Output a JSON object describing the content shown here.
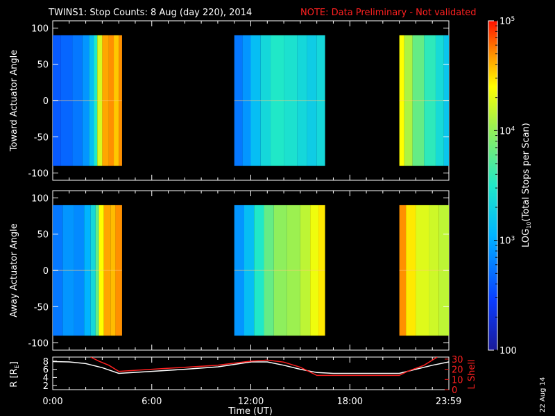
{
  "chart_data": [
    {
      "type": "heatmap",
      "title_main": "TWINS1: Stop Counts:  8 Aug (day 220), 2014",
      "title_note": "NOTE: Data Preliminary - Not validated",
      "ylabel": "Toward Actuator Angle",
      "ylim": [
        -110,
        110
      ],
      "yticks": [
        "100",
        "50",
        "0",
        "-50",
        "-100"
      ],
      "ytick_values": [
        100,
        50,
        0,
        -50,
        -100
      ],
      "data_range": [
        -90,
        90
      ],
      "time_range_hours": [
        0,
        24
      ],
      "segments": [
        {
          "start": 0.0,
          "end": 4.2,
          "blocks": [
            [
              0.0,
              0.2
            ],
            [
              0.5,
              0.22
            ],
            [
              1.2,
              0.25
            ],
            [
              1.8,
              0.3
            ],
            [
              2.2,
              0.38
            ],
            [
              2.5,
              0.5
            ],
            [
              2.7,
              0.75
            ],
            [
              3.0,
              0.88
            ],
            [
              3.4,
              0.9
            ],
            [
              3.7,
              0.85
            ],
            [
              4.0,
              0.9
            ]
          ]
        },
        {
          "start": 11.0,
          "end": 16.5,
          "blocks": [
            [
              11.0,
              0.25
            ],
            [
              11.5,
              0.3
            ],
            [
              12.0,
              0.38
            ],
            [
              12.6,
              0.45
            ],
            [
              13.2,
              0.5
            ],
            [
              14.0,
              0.48
            ],
            [
              14.8,
              0.45
            ],
            [
              15.4,
              0.42
            ],
            [
              16.0,
              0.45
            ]
          ]
        },
        {
          "start": 21.0,
          "end": 24.0,
          "blocks": [
            [
              21.0,
              0.8
            ],
            [
              21.3,
              0.7
            ],
            [
              21.8,
              0.6
            ],
            [
              22.5,
              0.52
            ],
            [
              23.2,
              0.46
            ],
            [
              23.7,
              0.4
            ]
          ]
        }
      ]
    },
    {
      "type": "heatmap",
      "ylabel": "Away Actuator Angle",
      "ylim": [
        -110,
        110
      ],
      "yticks": [
        "100",
        "50",
        "0",
        "-50",
        "-100"
      ],
      "ytick_values": [
        100,
        50,
        0,
        -50,
        -100
      ],
      "data_range": [
        -90,
        90
      ],
      "time_range_hours": [
        0,
        24
      ],
      "segments": [
        {
          "start": 0.0,
          "end": 4.2,
          "blocks": [
            [
              0.0,
              0.25
            ],
            [
              0.6,
              0.3
            ],
            [
              1.3,
              0.28
            ],
            [
              1.9,
              0.35
            ],
            [
              2.3,
              0.45
            ],
            [
              2.6,
              0.6
            ],
            [
              2.8,
              0.8
            ],
            [
              3.1,
              0.88
            ],
            [
              3.5,
              0.86
            ],
            [
              3.8,
              0.9
            ]
          ]
        },
        {
          "start": 11.0,
          "end": 16.5,
          "blocks": [
            [
              11.0,
              0.3
            ],
            [
              11.6,
              0.38
            ],
            [
              12.2,
              0.5
            ],
            [
              12.8,
              0.6
            ],
            [
              13.4,
              0.66
            ],
            [
              14.2,
              0.68
            ],
            [
              15.0,
              0.72
            ],
            [
              15.6,
              0.78
            ],
            [
              16.1,
              0.82
            ]
          ]
        },
        {
          "start": 21.0,
          "end": 24.0,
          "blocks": [
            [
              21.0,
              0.9
            ],
            [
              21.4,
              0.82
            ],
            [
              22.0,
              0.76
            ],
            [
              22.8,
              0.74
            ],
            [
              23.4,
              0.72
            ]
          ]
        }
      ]
    },
    {
      "type": "line",
      "xlabel": "Time (UT)",
      "xticks": [
        "0:00",
        "6:00",
        "12:00",
        "18:00",
        "23:59"
      ],
      "xtick_values": [
        0,
        6,
        12,
        18,
        23.983
      ],
      "ylabel_left_main": "R [R",
      "ylabel_left_sub": "E",
      "ylabel_left_tail": "]",
      "ylabel_right": "L Shell",
      "ylim_left": [
        1,
        9
      ],
      "ylim_right": [
        0,
        32
      ],
      "yticks_left": [
        "8",
        "6",
        "4",
        "2"
      ],
      "yticks_left_values": [
        8,
        6,
        4,
        2
      ],
      "yticks_right": [
        "30",
        "20",
        "10",
        "0"
      ],
      "yticks_right_values": [
        30,
        20,
        10,
        0
      ],
      "series": [
        {
          "color": "#ffffff",
          "axis": "left",
          "x": [
            0,
            1,
            2,
            3,
            4,
            6,
            8,
            10,
            11,
            12,
            13,
            14,
            15,
            16,
            17,
            18,
            19,
            20,
            21,
            22,
            23,
            24
          ],
          "y": [
            7.9,
            7.8,
            7.4,
            6.4,
            5.0,
            5.5,
            6.0,
            6.6,
            7.2,
            7.8,
            7.8,
            7.0,
            6.0,
            5.2,
            5.0,
            5.0,
            5.0,
            5.0,
            5.0,
            6.0,
            7.0,
            7.8
          ]
        },
        {
          "color": "#ff2020",
          "axis": "right",
          "x": [
            2.3,
            2.8,
            3.4,
            4.0,
            6,
            8,
            10,
            11,
            12,
            13,
            14,
            15,
            16,
            17,
            18,
            19,
            20,
            21,
            21.5,
            22.5,
            23.3
          ],
          "y": [
            32,
            28,
            24,
            18,
            20,
            22,
            24,
            26,
            28,
            29,
            27,
            22,
            14,
            14,
            14,
            14,
            14,
            14,
            18,
            24,
            32
          ]
        }
      ]
    },
    {
      "type": "colorbar",
      "label_main": "LOG",
      "label_sub": "10",
      "label_tail": "(Total Stops per Scan)",
      "scale": "log",
      "range": [
        100,
        100000
      ],
      "ticks": [
        {
          "value": 100000,
          "base": "10",
          "exp": "5"
        },
        {
          "value": 10000,
          "base": "10",
          "exp": "4"
        },
        {
          "value": 1000,
          "base": "10",
          "exp": "3"
        },
        {
          "value": 100,
          "base": "100",
          "exp": ""
        }
      ]
    }
  ],
  "date_stamp": "22 Aug 14"
}
